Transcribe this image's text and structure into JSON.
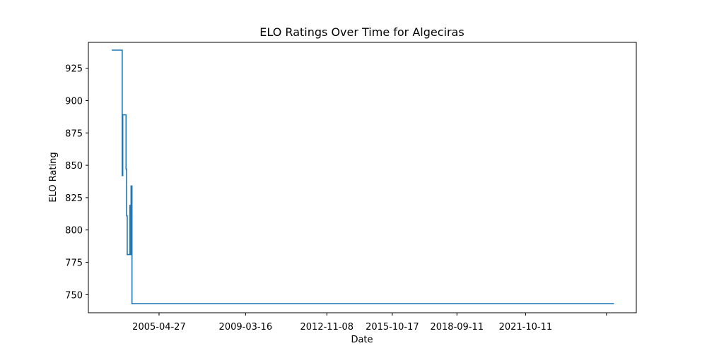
{
  "chart_data": {
    "type": "line",
    "title": "ELO Ratings Over Time for Algeciras",
    "xlabel": "Date",
    "ylabel": "ELO Rating",
    "x_scale": "date",
    "xlim": [
      "2002-02-23",
      "2026-10-01"
    ],
    "ylim": [
      736,
      945
    ],
    "grid": false,
    "legend": "none",
    "x_ticks": [
      "2005-04-27",
      "2009-03-16",
      "2012-11-08",
      "2015-10-17",
      "2018-09-11",
      "2021-10-11",
      ""
    ],
    "y_ticks": [
      750,
      775,
      800,
      825,
      850,
      875,
      900,
      925
    ],
    "colors": {
      "series": "#1f77b4"
    },
    "series": [
      {
        "step": "post",
        "points": [
          [
            "2003-03-14",
            939
          ],
          [
            "2003-08-20",
            939
          ],
          [
            "2003-09-01",
            842
          ],
          [
            "2003-09-10",
            889
          ],
          [
            "2003-10-25",
            889
          ],
          [
            "2003-11-03",
            847
          ],
          [
            "2003-11-12",
            811
          ],
          [
            "2003-11-22",
            781
          ],
          [
            "2004-01-05",
            819
          ],
          [
            "2004-01-15",
            781
          ],
          [
            "2004-01-24",
            834
          ],
          [
            "2004-02-08",
            743
          ],
          [
            "2025-09-30",
            743
          ]
        ]
      }
    ]
  }
}
